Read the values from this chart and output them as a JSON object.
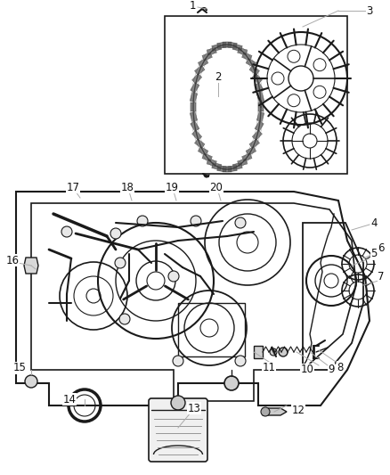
{
  "background_color": "#ffffff",
  "line_color": "#1a1a1a",
  "gray_line": "#aaaaaa",
  "fig_width": 4.38,
  "fig_height": 5.33,
  "dpi": 100,
  "label_fs": 8.5,
  "label_color": "#111111"
}
